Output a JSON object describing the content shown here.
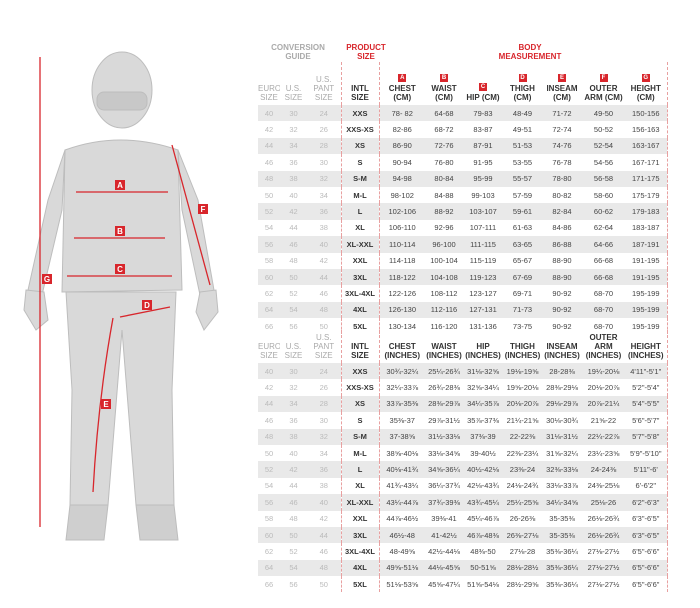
{
  "titles": {
    "conversion": "CONVERSION GUIDE",
    "product_size": "PRODUCT SIZE",
    "body_measurement": "BODY MEASUREMENT"
  },
  "colors": {
    "accent": "#d8262c",
    "stripe": "#e9e9e9",
    "conversion_text": "#bbbbbb"
  },
  "figure": {
    "labels": [
      "A",
      "B",
      "C",
      "D",
      "E",
      "F",
      "G"
    ]
  },
  "conversion_headers": [
    "EURO SIZE",
    "U.S. SIZE",
    "U.S. PANT SIZE"
  ],
  "intl_header": "INTL SIZE",
  "letters": [
    "A",
    "B",
    "C",
    "D",
    "E",
    "F",
    "G"
  ],
  "cm_headers": [
    "CHEST (CM)",
    "WAIST (CM)",
    "HIP (CM)",
    "THIGH (CM)",
    "INSEAM (CM)",
    "OUTER ARM (CM)",
    "HEIGHT (CM)"
  ],
  "in_headers": [
    "CHEST (INCHES)",
    "WAIST (INCHES)",
    "HIP (INCHES)",
    "THIGH (INCHES)",
    "INSEAM (INCHES)",
    "OUTER ARM (INCHES)",
    "HEIGHT (INCHES)"
  ],
  "conversion": [
    [
      "40",
      "30",
      "24"
    ],
    [
      "42",
      "32",
      "26"
    ],
    [
      "44",
      "34",
      "28"
    ],
    [
      "46",
      "36",
      "30"
    ],
    [
      "48",
      "38",
      "32"
    ],
    [
      "50",
      "40",
      "34"
    ],
    [
      "52",
      "42",
      "36"
    ],
    [
      "54",
      "44",
      "38"
    ],
    [
      "56",
      "46",
      "40"
    ],
    [
      "58",
      "48",
      "42"
    ],
    [
      "60",
      "50",
      "44"
    ],
    [
      "62",
      "52",
      "46"
    ],
    [
      "64",
      "54",
      "48"
    ],
    [
      "66",
      "56",
      "50"
    ]
  ],
  "sizes": [
    "XXS",
    "XXS-XS",
    "XS",
    "S",
    "S-M",
    "M-L",
    "L",
    "XL",
    "XL-XXL",
    "XXL",
    "3XL",
    "3XL-4XL",
    "4XL",
    "5XL"
  ],
  "cm_rows": [
    [
      "78- 82",
      "64-68",
      "79-83",
      "48-49",
      "71-72",
      "49-50",
      "150-156"
    ],
    [
      "82-86",
      "68-72",
      "83-87",
      "49-51",
      "72-74",
      "50-52",
      "156-163"
    ],
    [
      "86-90",
      "72-76",
      "87-91",
      "51-53",
      "74-76",
      "52-54",
      "163-167"
    ],
    [
      "90-94",
      "76-80",
      "91-95",
      "53-55",
      "76-78",
      "54-56",
      "167-171"
    ],
    [
      "94-98",
      "80-84",
      "95-99",
      "55-57",
      "78-80",
      "56-58",
      "171-175"
    ],
    [
      "98-102",
      "84-88",
      "99-103",
      "57-59",
      "80-82",
      "58-60",
      "175-179"
    ],
    [
      "102-106",
      "88-92",
      "103-107",
      "59-61",
      "82-84",
      "60-62",
      "179-183"
    ],
    [
      "106-110",
      "92-96",
      "107-111",
      "61-63",
      "84-86",
      "62-64",
      "183-187"
    ],
    [
      "110-114",
      "96-100",
      "111-115",
      "63-65",
      "86-88",
      "64-66",
      "187-191"
    ],
    [
      "114-118",
      "100-104",
      "115-119",
      "65-67",
      "88-90",
      "66-68",
      "191-195"
    ],
    [
      "118-122",
      "104-108",
      "119-123",
      "67-69",
      "88-90",
      "66-68",
      "191-195"
    ],
    [
      "122-126",
      "108-112",
      "123-127",
      "69-71",
      "90-92",
      "68-70",
      "195-199"
    ],
    [
      "126-130",
      "112-116",
      "127-131",
      "71-73",
      "90-92",
      "68-70",
      "195-199"
    ],
    [
      "130-134",
      "116-120",
      "131-136",
      "73-75",
      "90-92",
      "68-70",
      "195-199"
    ]
  ],
  "in_rows": [
    [
      "30¾-32¼",
      "25¼-26¾",
      "31⅛-32⅝",
      "19⅛-19⅝",
      "28-28⅜",
      "19¼-20⅛",
      "4'11\"-5'1\""
    ],
    [
      "32¼-33⅞",
      "26¾-28⅜",
      "32⅝-34¼",
      "19⅝-20⅛",
      "28⅜-29⅛",
      "20⅛-20⅞",
      "5'2\"-5'4\""
    ],
    [
      "33⅞-35⅜",
      "28⅜-29⅞",
      "34¼-35⅞",
      "20⅛-20⅞",
      "29⅛-29⅞",
      "20⅞-21¼",
      "5'4\"-5'5\""
    ],
    [
      "35⅜-37",
      "29⅞-31½",
      "35⅞-37⅜",
      "21¼-21⅝",
      "30⅛-30¾",
      "21⅝-22",
      "5'6\"-5'7\""
    ],
    [
      "37-38⅝",
      "31½-33⅛",
      "37⅜-39",
      "22-22⅜",
      "31⅛-31½",
      "22¼-22⅞",
      "5'7\"-5'8\""
    ],
    [
      "38⅝-40⅛",
      "33⅛-34⅝",
      "39-40½",
      "22⅜-23¼",
      "31⅝-32¼",
      "23¼-23⅝",
      "5'9\"-5'10\""
    ],
    [
      "40⅛-41¾",
      "34⅝-36¼",
      "40½-42⅛",
      "23⅜-24",
      "32⅜-33⅛",
      "24-24⅜",
      "5'11\"-6'"
    ],
    [
      "41¾-43¼",
      "36¼-37¾",
      "42⅛-43¾",
      "24⅛-24¾",
      "33⅛-33⅞",
      "24⅜-25⅛",
      "6'-6'2\""
    ],
    [
      "43¼-44⅞",
      "37¾-39⅜",
      "43¾-45¼",
      "25¼-25⅝",
      "34¼-34⅝",
      "25⅛-26",
      "6'2\"-6'3\""
    ],
    [
      "44⅞-46½",
      "39⅜-41",
      "45¼-46⅞",
      "26-26⅜",
      "35-35⅜",
      "26⅛-26¾",
      "6'3\"-6'5\""
    ],
    [
      "46½-48",
      "41-42½",
      "46⅞-48⅜",
      "26⅜-27⅛",
      "35-35⅜",
      "26⅛-26¾",
      "6'3\"-6'5\""
    ],
    [
      "48-49⅝",
      "42½-44⅛",
      "48⅜-50",
      "27⅛-28",
      "35⅜-36¼",
      "27⅛-27½",
      "6'5\"-6'6\""
    ],
    [
      "49⅝-51⅛",
      "44⅛-45⅝",
      "50-51⅝",
      "28⅛-28½",
      "35⅜-36¼",
      "27⅛-27½",
      "6'5\"-6'6\""
    ],
    [
      "51⅛-53⅝",
      "45⅝-47¼",
      "51⅝-54⅛",
      "28½-29⅝",
      "35⅜-36¼",
      "27⅛-27½",
      "6'5\"-6'6\""
    ]
  ]
}
